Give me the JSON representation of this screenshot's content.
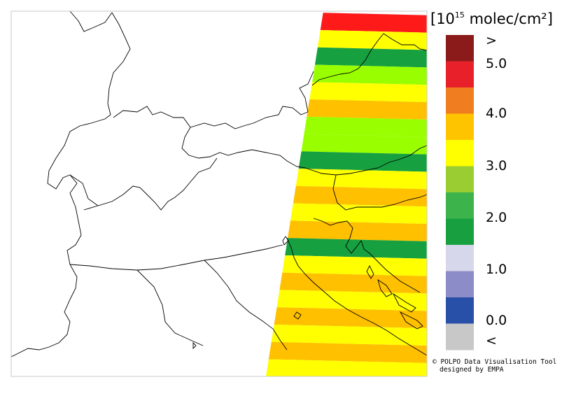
{
  "unit": {
    "prefix": "[10",
    "exponent": "15",
    "suffix": " molec/cm²]"
  },
  "legend": {
    "labels": [
      ">",
      "5.0",
      "4.0",
      "3.0",
      "2.0",
      "1.0",
      "0.0",
      "<"
    ],
    "colors": [
      {
        "color": "#8b1a1a",
        "name": "above-5"
      },
      {
        "color": "#e8202a",
        "name": "4.5-5.0"
      },
      {
        "color": "#f07d20",
        "name": "4.0-4.5"
      },
      {
        "color": "#ffc400",
        "name": "3.5-4.0"
      },
      {
        "color": "#ffff00",
        "name": "3.0-3.5"
      },
      {
        "color": "#9acd32",
        "name": "2.5-3.0"
      },
      {
        "color": "#3cb44b",
        "name": "2.0-2.5"
      },
      {
        "color": "#18a040",
        "name": "1.5-2.0"
      },
      {
        "color": "#d7d7ec",
        "name": "1.0-1.5"
      },
      {
        "color": "#8c8cc8",
        "name": "0.5-1.0"
      },
      {
        "color": "#2850a8",
        "name": "0.0-0.5"
      },
      {
        "color": "#c8c8c8",
        "name": "below-0"
      }
    ]
  },
  "swath": {
    "stripes": [
      "red",
      "yellow",
      "green",
      "greenyellow",
      "yellow",
      "orange",
      "greenyellow",
      "greenyellow",
      "green",
      "yellow",
      "orange",
      "yellow",
      "orange",
      "green",
      "yellow",
      "orange",
      "yellow",
      "orange",
      "yellow",
      "orange",
      "yellow"
    ],
    "palette": {
      "red": "#ff1a1a",
      "yellow": "#ffff00",
      "orange": "#ffc000",
      "dark_orange": "#ff7f00",
      "green": "#17a040",
      "bright_green": "#00c800",
      "greenyellow": "#99ff00"
    }
  },
  "credit": {
    "line1": "© POLPO Data Visualisation Tool",
    "line2": "designed by EMPA"
  }
}
